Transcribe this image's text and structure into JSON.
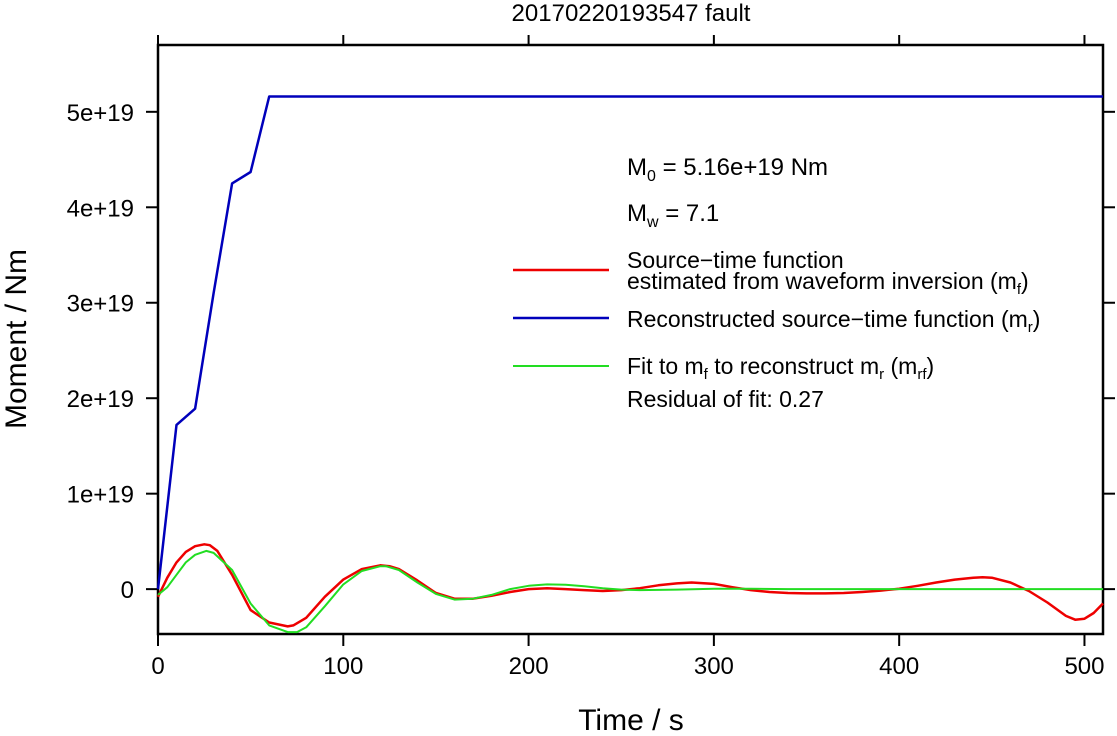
{
  "chart_data": {
    "type": "line",
    "title": "20170220193547 fault",
    "xlabel": "Time / s",
    "ylabel": "Moment / Nm",
    "xlim": [
      0,
      510
    ],
    "ylim": [
      -4.7e+18,
      5.7e+19
    ],
    "x_ticks": [
      0,
      100,
      200,
      300,
      400,
      500
    ],
    "x_tick_labels": [
      "0",
      "100",
      "200",
      "300",
      "400",
      "500"
    ],
    "y_ticks": [
      0,
      1e+19,
      2e+19,
      3e+19,
      4e+19,
      5e+19
    ],
    "y_tick_labels": [
      "0",
      "1e+19",
      "2e+19",
      "3e+19",
      "4e+19",
      "5e+19"
    ],
    "grid": false,
    "series": [
      {
        "name": "Source−time function estimated from waveform inversion (mf)",
        "color": "#ee0000",
        "x": [
          0,
          5,
          10,
          15,
          20,
          25,
          28,
          32,
          40,
          50,
          60,
          70,
          73,
          80,
          90,
          100,
          110,
          120,
          125,
          130,
          140,
          150,
          160,
          170,
          180,
          190,
          200,
          210,
          220,
          230,
          240,
          250,
          260,
          270,
          280,
          288,
          300,
          310,
          320,
          330,
          340,
          350,
          360,
          370,
          380,
          390,
          400,
          410,
          420,
          430,
          440,
          445,
          450,
          460,
          470,
          480,
          490,
          495,
          500,
          505,
          510
        ],
        "y": [
          -8e+17,
          1.2e+18,
          2.8e+18,
          3.9e+18,
          4.5e+18,
          4.7e+18,
          4.6e+18,
          4e+18,
          1.5e+18,
          -2.2e+18,
          -3.5e+18,
          -3.9e+18,
          -3.8e+18,
          -3e+18,
          -8e+17,
          1e+18,
          2.1e+18,
          2.5e+18,
          2.4e+18,
          2.1e+18,
          9e+17,
          -4e+17,
          -1e+18,
          -1e+18,
          -7e+17,
          -3e+17,
          0.0,
          1e+17,
          0.0,
          -1e+17,
          -2e+17,
          -1e+17,
          1e+17,
          4e+17,
          6e+17,
          7e+17,
          5.5e+17,
          2e+17,
          -1e+17,
          -3e+17,
          -4e+17,
          -4.5e+17,
          -4.5e+17,
          -4e+17,
          -3e+17,
          -1.5e+17,
          5e+16,
          3.5e+17,
          7e+17,
          1e+18,
          1.2e+18,
          1.25e+18,
          1.2e+18,
          7e+17,
          -2e+17,
          -1.4e+18,
          -2.8e+18,
          -3.2e+18,
          -3.1e+18,
          -2.5e+18,
          -1.5e+18
        ]
      },
      {
        "name": "Reconstructed source−time function (mr)",
        "color": "#0000bb",
        "x": [
          0,
          10,
          20,
          30,
          40,
          50,
          60,
          100,
          200,
          300,
          400,
          500,
          510
        ],
        "y": [
          0,
          1.72e+19,
          1.89e+19,
          3.1e+19,
          4.25e+19,
          4.37e+19,
          5.16e+19,
          5.16e+19,
          5.16e+19,
          5.16e+19,
          5.16e+19,
          5.16e+19,
          5.16e+19
        ]
      },
      {
        "name": "Fit to mf to reconstruct mr (mrf)",
        "color": "#22dd22",
        "x": [
          0,
          5,
          10,
          15,
          20,
          26,
          30,
          40,
          50,
          60,
          70,
          75,
          80,
          90,
          100,
          110,
          120,
          123,
          130,
          140,
          150,
          160,
          170,
          180,
          190,
          200,
          210,
          220,
          230,
          240,
          250,
          260,
          280,
          300,
          320,
          340,
          360,
          380,
          400,
          450,
          500,
          510
        ],
        "y": [
          -6e+17,
          2e+17,
          1.5e+18,
          2.8e+18,
          3.6e+18,
          4e+18,
          3.8e+18,
          2e+18,
          -1.5e+18,
          -3.8e+18,
          -4.5e+18,
          -4.5e+18,
          -4e+18,
          -1.8e+18,
          5e+17,
          1.9e+18,
          2.4e+18,
          2.4e+18,
          2e+18,
          7e+17,
          -5e+17,
          -1.1e+18,
          -1e+18,
          -6e+17,
          0.0,
          3.5e+17,
          5e+17,
          4.5e+17,
          3e+17,
          1e+17,
          -5e+16,
          -1e+17,
          -5e+16,
          5e+16,
          5e+16,
          0.0,
          0.0,
          0.0,
          0.0,
          0.0,
          0.0,
          0.0
        ]
      }
    ],
    "legend": {
      "placement": "right",
      "entries": [
        {
          "color": "#ee0000",
          "line1": "Source−time function",
          "line2": "estimated from waveform inversion (m",
          "sub": "f",
          "after": ")"
        },
        {
          "color": "#0000bb",
          "text": "Reconstructed source−time function (m",
          "sub": "r",
          "after": ")"
        },
        {
          "color": "#22dd22",
          "text_a": "Fit to m",
          "sub_a": "f",
          "text_b": " to reconstruct m",
          "sub_b": "r",
          "text_c": " (m",
          "sub_c": "rf",
          "after": ")"
        }
      ]
    },
    "annotations": {
      "m0": {
        "symbol": "M",
        "sub": "0",
        "value": " = 5.16e+19 Nm"
      },
      "mw": {
        "symbol": "M",
        "sub": "w",
        "value": " = 7.1"
      },
      "residual": "Residual of fit: 0.27"
    }
  }
}
